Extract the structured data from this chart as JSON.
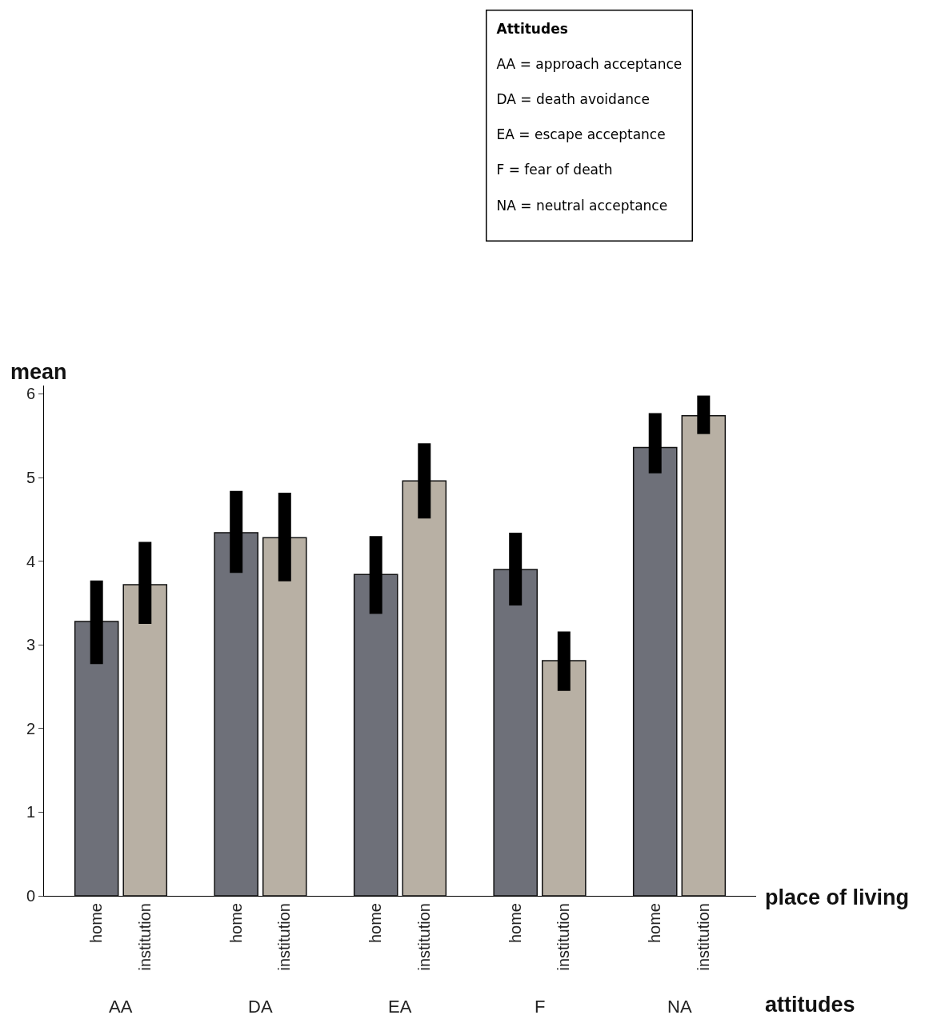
{
  "chart_data": {
    "type": "bar",
    "ylabel": "mean",
    "xlabel": "attitudes",
    "legend_title": "place of living",
    "legend": false,
    "categories": [
      "AA",
      "DA",
      "EA",
      "F",
      "NA"
    ],
    "series": [
      {
        "name": "home",
        "color": "#6e7079",
        "values": [
          3.28,
          4.34,
          3.84,
          3.9,
          5.36
        ],
        "errors": [
          [
            2.77,
            3.77
          ],
          [
            3.86,
            4.84
          ],
          [
            3.37,
            4.3
          ],
          [
            3.47,
            4.34
          ],
          [
            5.05,
            5.77
          ]
        ]
      },
      {
        "name": "institution",
        "color": "#b8b0a4",
        "values": [
          3.72,
          4.28,
          4.96,
          2.81,
          5.74
        ],
        "errors": [
          [
            3.25,
            4.23
          ],
          [
            3.76,
            4.82
          ],
          [
            4.51,
            5.41
          ],
          [
            2.45,
            3.16
          ],
          [
            5.52,
            5.98
          ]
        ]
      }
    ],
    "ylim": [
      0,
      6.1
    ],
    "yticks": [
      0,
      1,
      2,
      3,
      4,
      5,
      6
    ],
    "annotations": [
      "Attitudes",
      "AA = approach acceptance",
      "DA = death avoidance",
      "EA = escape acceptance",
      "F = fear of death",
      "NA = neutral acceptance"
    ]
  }
}
